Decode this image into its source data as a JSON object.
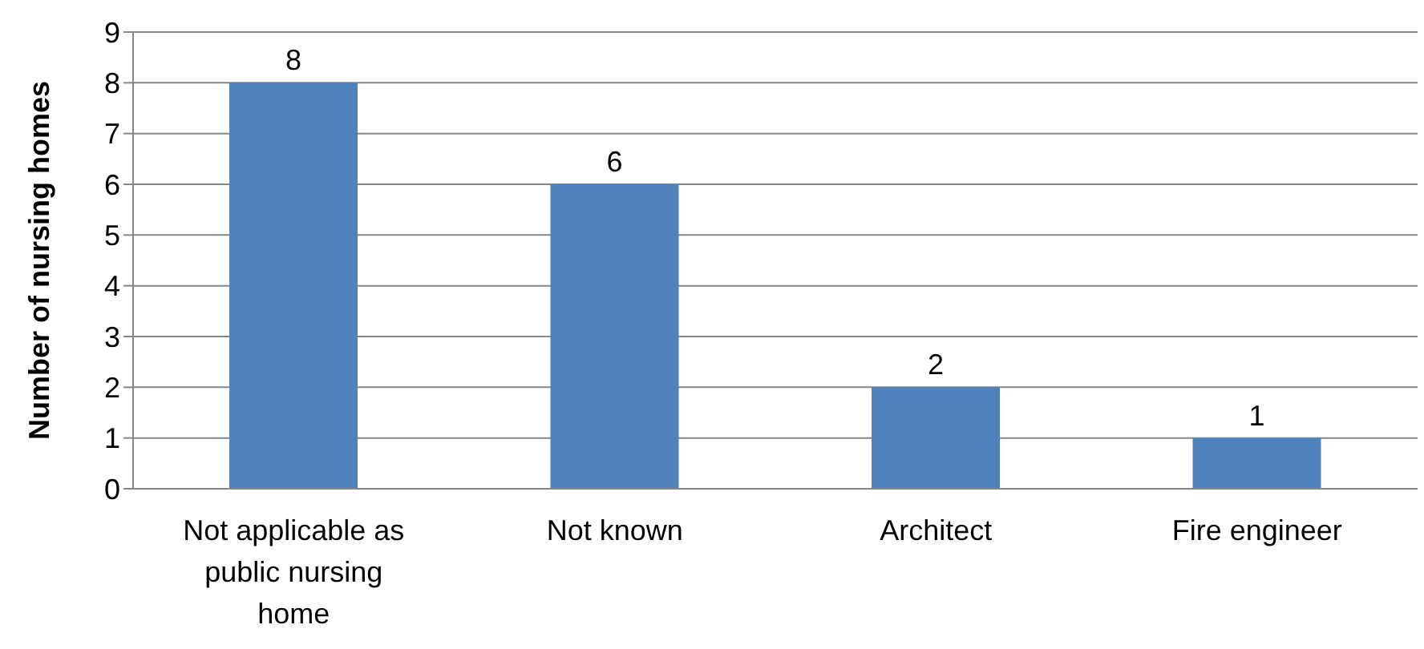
{
  "chart_data": {
    "type": "bar",
    "ylabel": "Number of nursing homes",
    "categories": [
      "Not applicable as public nursing home",
      "Not known",
      "Architect",
      "Fire engineer"
    ],
    "values": [
      8,
      6,
      2,
      1
    ],
    "color": "#4f81bd",
    "ylim": [
      0,
      9
    ],
    "yticks": [
      0,
      1,
      2,
      3,
      4,
      5,
      6,
      7,
      8,
      9
    ],
    "grid": "y",
    "data_labels": true
  }
}
